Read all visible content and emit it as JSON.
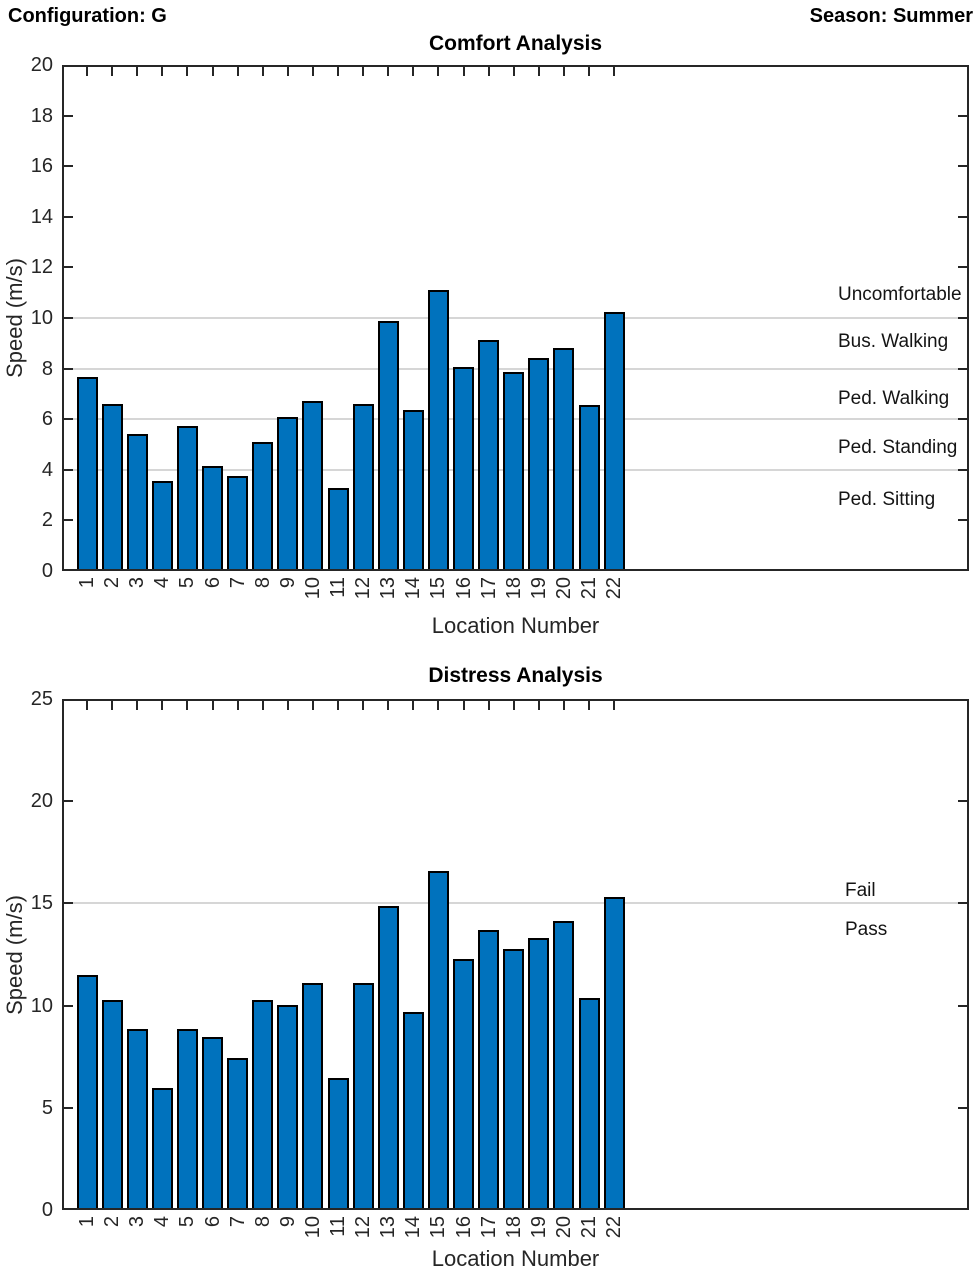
{
  "header": {
    "configuration": "Configuration: G",
    "season": "Season: Summer"
  },
  "chart_data": [
    {
      "type": "bar",
      "title": "Comfort Analysis",
      "xlabel": "Location Number",
      "ylabel": "Speed (m/s)",
      "categories": [
        "1",
        "2",
        "3",
        "4",
        "5",
        "6",
        "7",
        "8",
        "9",
        "10",
        "11",
        "12",
        "13",
        "14",
        "15",
        "16",
        "17",
        "18",
        "19",
        "20",
        "21",
        "22"
      ],
      "values": [
        7.65,
        6.6,
        5.4,
        3.55,
        5.75,
        4.15,
        3.75,
        5.1,
        6.1,
        6.7,
        3.3,
        6.6,
        9.9,
        6.35,
        11.1,
        8.05,
        9.15,
        7.85,
        8.4,
        8.8,
        6.55,
        10.25
      ],
      "ylim": [
        0,
        20
      ],
      "yticks": [
        0,
        2,
        4,
        6,
        8,
        10,
        12,
        14,
        16,
        18,
        20
      ],
      "xlim": [
        0,
        36.14
      ],
      "grid_on_values": [
        4,
        6,
        8,
        10
      ],
      "region_labels": [
        {
          "text": "Uncomfortable",
          "value": 10.9
        },
        {
          "text": "Bus. Walking",
          "value": 9.05
        },
        {
          "text": "Ped. Walking",
          "value": 6.8
        },
        {
          "text": "Ped. Standing",
          "value": 4.85
        },
        {
          "text": "Ped. Sitting",
          "value": 2.8
        }
      ],
      "bar_color": "#0072BD",
      "bar_edge_color": "#000000",
      "grid_color": "#d6d6d6",
      "axis_color": "#262626"
    },
    {
      "type": "bar",
      "title": "Distress Analysis",
      "xlabel": "Location Number",
      "ylabel": "Speed (m/s)",
      "categories": [
        "1",
        "2",
        "3",
        "4",
        "5",
        "6",
        "7",
        "8",
        "9",
        "10",
        "11",
        "12",
        "13",
        "14",
        "15",
        "16",
        "17",
        "18",
        "19",
        "20",
        "21",
        "22"
      ],
      "values": [
        11.5,
        10.25,
        8.85,
        5.95,
        8.85,
        8.45,
        7.45,
        10.25,
        10.05,
        11.1,
        6.45,
        11.1,
        14.85,
        9.7,
        16.6,
        12.3,
        13.7,
        12.75,
        13.3,
        14.15,
        10.35,
        15.3
      ],
      "ylim": [
        0,
        25
      ],
      "yticks": [
        0,
        5,
        10,
        15,
        20,
        25
      ],
      "xlim": [
        0,
        36.14
      ],
      "grid_on_values": [
        15
      ],
      "region_labels": [
        {
          "text": "Fail",
          "value": 15.6
        },
        {
          "text": "Pass",
          "value": 13.7
        }
      ],
      "bar_color": "#0072BD",
      "bar_edge_color": "#000000",
      "grid_color": "#d6d6d6",
      "axis_color": "#262626"
    }
  ]
}
